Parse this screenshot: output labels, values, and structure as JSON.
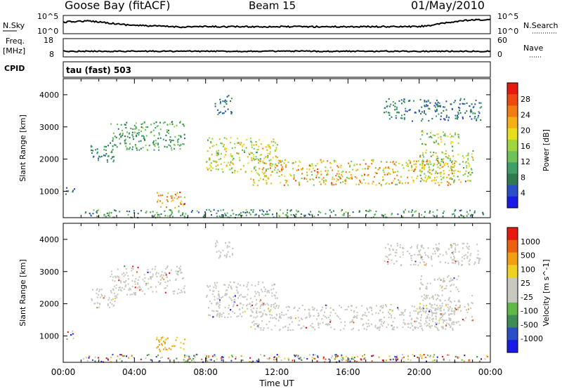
{
  "header": {
    "station": "Goose Bay (fitACF)",
    "beam": "Beam 15",
    "date": "01/May/2010"
  },
  "side_labels": {
    "nsky": "N.Sky",
    "freq": "Freq.",
    "freq_unit": "[MHz]",
    "cpid": "CPID",
    "nsearch": "N.Search",
    "nave": "Nave",
    "cpid_value": "tau (fast) 503"
  },
  "noise_axis": {
    "left_top": "10^5",
    "left_bottom": "10^0",
    "right_top": "10^5",
    "right_bottom": "10^0"
  },
  "freq_axis": {
    "left_top": "18",
    "left_bottom": "8",
    "right_top": "60",
    "right_bottom": "0"
  },
  "chart_data": [
    {
      "type": "heatmap",
      "panel": "power",
      "xlabel": "Time UT",
      "ylabel": "Slant Range [km]",
      "x_ticks": [
        "00:00",
        "04:00",
        "08:00",
        "12:00",
        "16:00",
        "20:00",
        "00:00"
      ],
      "y_ticks": [
        1000,
        2000,
        3000,
        4000
      ],
      "ylim": [
        180,
        4500
      ],
      "xlim_hours": [
        0,
        24
      ],
      "colorbar": {
        "label": "Power [dB]",
        "ticks": [
          "28",
          "24",
          "20",
          "16",
          "12",
          "8",
          "4"
        ],
        "colors": [
          "#1a1ae6",
          "#2a4fc8",
          "#2f7a4f",
          "#3f9f68",
          "#6fc25a",
          "#9fd63e",
          "#e8de1a",
          "#f4b014",
          "#f27d11",
          "#ee4a0e",
          "#e61a0e"
        ]
      },
      "regions": [
        {
          "t0": 2.6,
          "t1": 6.8,
          "r0": 2300,
          "r1": 3200,
          "desc": "blob",
          "p": [
            6,
            14
          ]
        },
        {
          "t0": 1.5,
          "t1": 3.0,
          "r0": 1900,
          "r1": 2500,
          "p": [
            4,
            10
          ]
        },
        {
          "t0": 8.0,
          "t1": 12.0,
          "r0": 1600,
          "r1": 2700,
          "p": [
            10,
            22
          ]
        },
        {
          "t0": 10.5,
          "t1": 22.0,
          "r0": 1200,
          "r1": 2000,
          "p": [
            12,
            26
          ]
        },
        {
          "t0": 20.0,
          "t1": 23.0,
          "r0": 1300,
          "r1": 2300,
          "p": [
            8,
            22
          ]
        },
        {
          "t0": 20.0,
          "t1": 22.2,
          "r0": 2400,
          "r1": 2900,
          "p": [
            8,
            20
          ]
        },
        {
          "t0": 5.2,
          "t1": 6.8,
          "r0": 500,
          "r1": 1000,
          "p": [
            12,
            28
          ]
        },
        {
          "t0": 8.5,
          "t1": 9.5,
          "r0": 3400,
          "r1": 4000,
          "p": [
            4,
            10
          ]
        },
        {
          "t0": 0.1,
          "t1": 0.6,
          "r0": 900,
          "r1": 1200,
          "p": [
            4,
            8
          ]
        },
        {
          "t0": 18.0,
          "t1": 23.5,
          "r0": 3200,
          "r1": 3900,
          "p": [
            4,
            10
          ]
        },
        {
          "t0": 1.0,
          "t1": 23.8,
          "r0": 200,
          "r1": 450,
          "p": [
            4,
            14
          ]
        }
      ]
    },
    {
      "type": "heatmap",
      "panel": "velocity",
      "xlabel": "Time UT",
      "ylabel": "Slant Range [km]",
      "x_ticks": [
        "00:00",
        "04:00",
        "08:00",
        "12:00",
        "16:00",
        "20:00",
        "00:00"
      ],
      "y_ticks": [
        1000,
        2000,
        3000,
        4000
      ],
      "ylim": [
        180,
        4500
      ],
      "colorbar": {
        "label": "Velocity [m s^-1]",
        "ticks": [
          "1000",
          "500",
          "100",
          "25",
          "-25",
          "-100",
          "-500",
          "-1000"
        ],
        "colors": [
          "#1a1ae6",
          "#2a4fc8",
          "#3f8c55",
          "#62b846",
          "#c8c8c0",
          "#c8c8c0",
          "#f0d020",
          "#f2a012",
          "#ee6010",
          "#e61a0e"
        ]
      },
      "regions": [
        {
          "t0": 2.6,
          "t1": 6.8,
          "r0": 2300,
          "r1": 3200,
          "v": "ground"
        },
        {
          "t0": 1.5,
          "t1": 3.0,
          "r0": 1900,
          "r1": 2500,
          "v": "ground"
        },
        {
          "t0": 8.0,
          "t1": 12.0,
          "r0": 1600,
          "r1": 2700,
          "v": "ground"
        },
        {
          "t0": 10.5,
          "t1": 22.0,
          "r0": 1200,
          "r1": 2000,
          "v": "ground"
        },
        {
          "t0": 20.0,
          "t1": 23.0,
          "r0": 1300,
          "r1": 2300,
          "v": "ground"
        },
        {
          "t0": 20.0,
          "t1": 22.2,
          "r0": 2400,
          "r1": 2900,
          "v": "ground"
        },
        {
          "t0": 5.2,
          "t1": 6.8,
          "r0": 500,
          "r1": 1000,
          "v": "negative"
        },
        {
          "t0": 8.5,
          "t1": 9.5,
          "r0": 3400,
          "r1": 4000,
          "v": "ground"
        },
        {
          "t0": 0.1,
          "t1": 0.6,
          "r0": 900,
          "r1": 1200,
          "v": "mixed"
        },
        {
          "t0": 18.0,
          "t1": 23.5,
          "r0": 3200,
          "r1": 3900,
          "v": "ground"
        },
        {
          "t0": 1.0,
          "t1": 23.8,
          "r0": 200,
          "r1": 450,
          "v": "mixed"
        }
      ]
    }
  ]
}
